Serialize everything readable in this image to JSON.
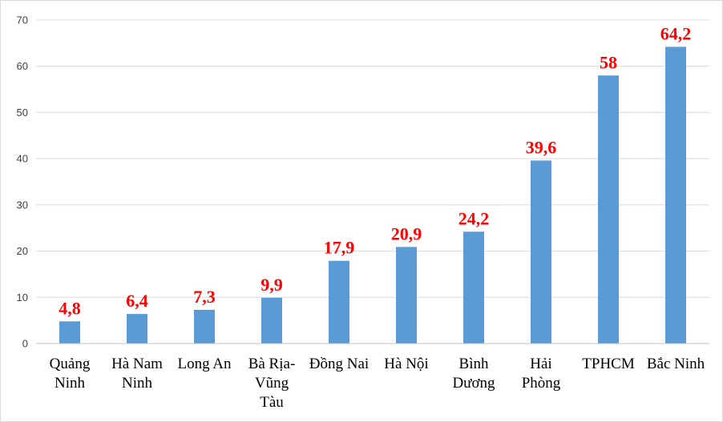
{
  "chart_data": {
    "type": "bar",
    "title": "",
    "xlabel": "",
    "ylabel": "",
    "categories": [
      [
        "Quảng",
        "Ninh"
      ],
      [
        "Hà Nam",
        "Ninh"
      ],
      [
        "Long An"
      ],
      [
        "Bà Rịa-",
        "Vũng",
        "Tàu"
      ],
      [
        "Đồng Nai"
      ],
      [
        "Hà Nội"
      ],
      [
        "Bình",
        "Dương"
      ],
      [
        "Hải",
        "Phòng"
      ],
      [
        "TPHCM"
      ],
      [
        "Bắc Ninh"
      ]
    ],
    "values": [
      4.8,
      6.4,
      7.3,
      9.9,
      17.9,
      20.9,
      24.2,
      39.6,
      58,
      64.2
    ],
    "data_labels": [
      "4,8",
      "6,4",
      "7,3",
      "9,9",
      "17,9",
      "20,9",
      "24,2",
      "39,6",
      "58",
      "64,2"
    ],
    "ylim": [
      0,
      70
    ],
    "yticks": [
      0,
      10,
      20,
      30,
      40,
      50,
      60,
      70
    ],
    "grid": true,
    "legend": "none",
    "colors": {
      "bar": "#5b9bd5",
      "data_label": "#ff0000",
      "grid": "#d9d9d9",
      "axis": "#bfbfbf"
    }
  }
}
